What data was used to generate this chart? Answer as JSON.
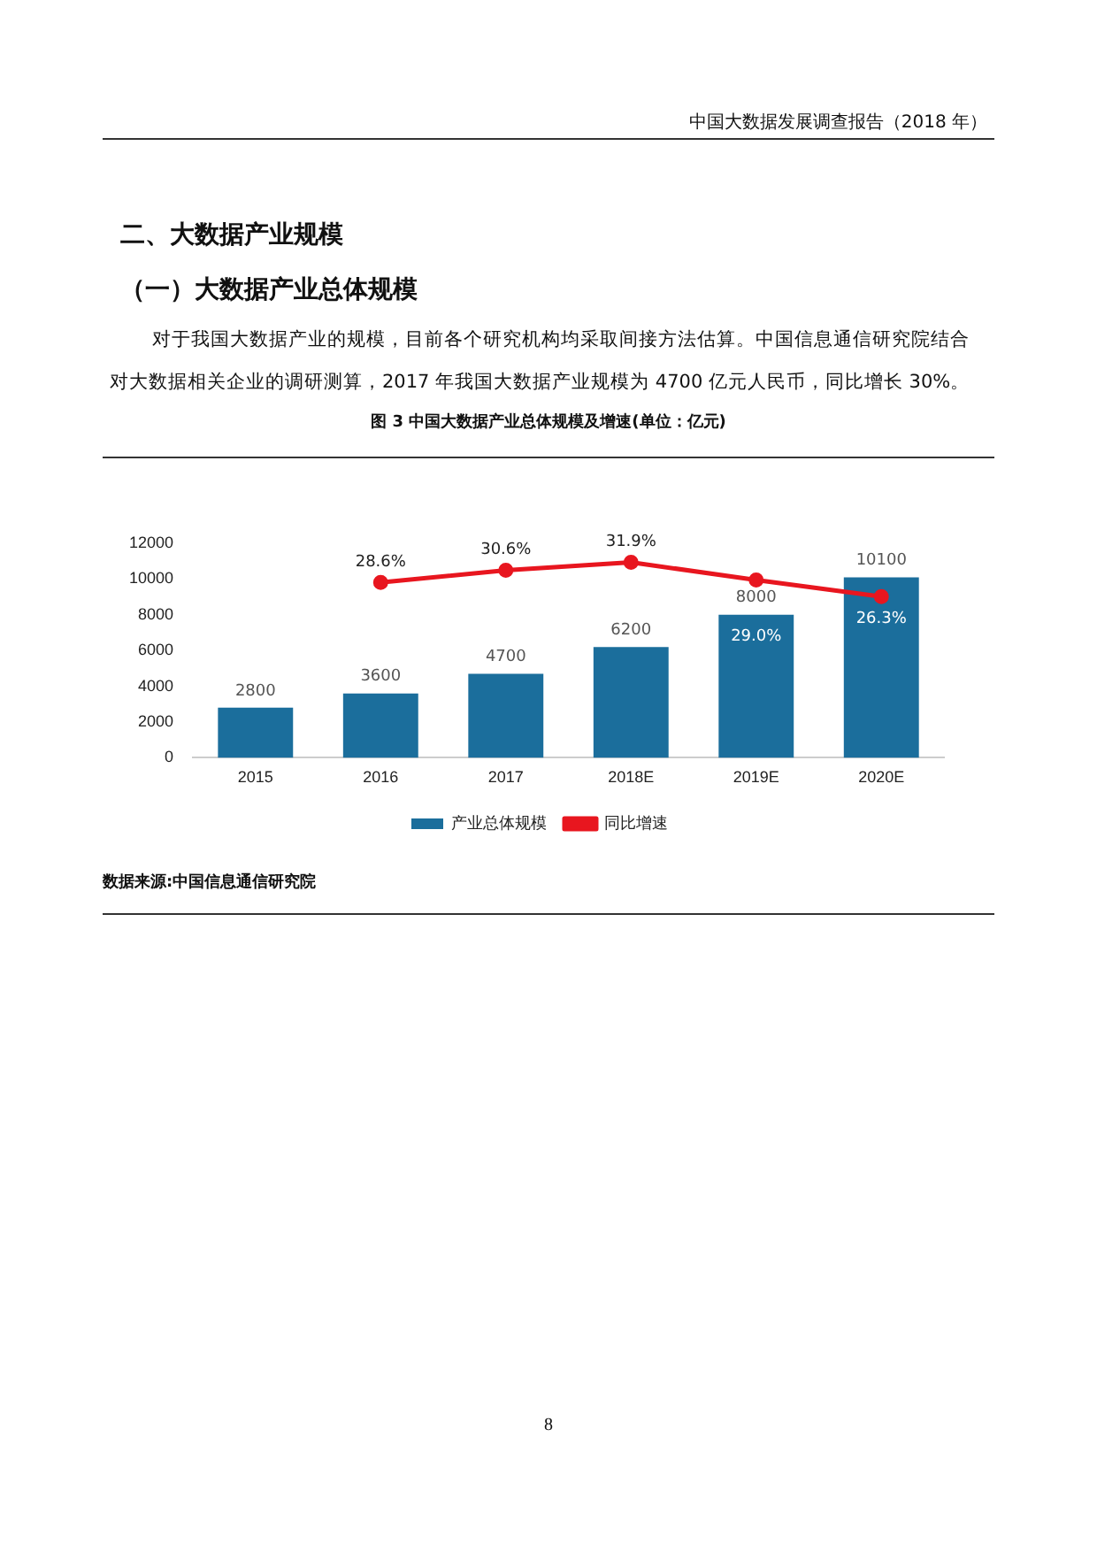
{
  "chart_data": {
    "type": "bar",
    "title": "图 3 中国大数据产业总体规模及增速(单位：亿元)",
    "categories": [
      "2015",
      "2016",
      "2017",
      "2018E",
      "2019E",
      "2020E"
    ],
    "series": [
      {
        "name": "产业总体规模",
        "type": "bar",
        "color": "#1b6e9c",
        "values": [
          2800,
          3600,
          4700,
          6200,
          8000,
          10100
        ]
      },
      {
        "name": "同比增速",
        "type": "line",
        "axis": "y2",
        "color": "#e8161f",
        "values": [
          null,
          28.6,
          30.6,
          31.9,
          29.0,
          26.3
        ],
        "value_labels": [
          null,
          "28.6%",
          "30.6%",
          "31.9%",
          "29.0%",
          "26.3%"
        ]
      }
    ],
    "ylim": [
      0,
      12000
    ],
    "yticks": [
      0,
      2000,
      4000,
      6000,
      8000,
      10000,
      12000
    ],
    "data_labels": true,
    "grid": false,
    "legend": "bottom",
    "marker": "circle",
    "annotations": [
      "中国大数据发展调查报告（2018 年）",
      "二、大数据产业规模",
      "（一）大数据产业总体规模",
      "对于我国大数据产业的规模，目前各个研究机构均采取间接方法估算。中国信息通信研究院结合对大数据相关企业的调研测算，2017 年我国大数据产业规模为 4700 亿元人民币，同比增长 30%。",
      "数据来源:中国信息通信研究院",
      "8"
    ]
  }
}
